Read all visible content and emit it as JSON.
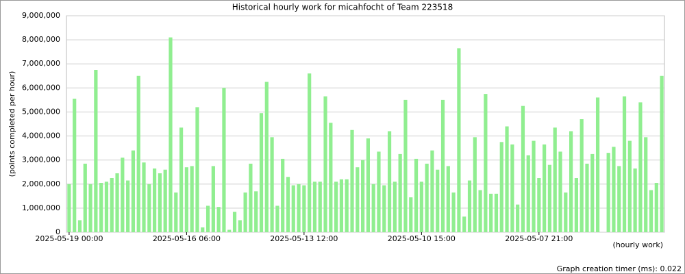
{
  "chart_data": {
    "type": "bar",
    "title": "Historical hourly work for micahfocht of Team 223518",
    "y_label": "(points completed per hour)",
    "x_label": "(hourly work)",
    "footer": "Graph creation timer (ms): 0.022",
    "color": "#90ee90",
    "grid": true,
    "categories": [
      "2025-05-19 00:00",
      null,
      null,
      null,
      null,
      null,
      null,
      null,
      null,
      null,
      null,
      null,
      null,
      null,
      null,
      null,
      null,
      null,
      null,
      null,
      null,
      null,
      "2025-05-16 06:00",
      null,
      null,
      null,
      null,
      null,
      null,
      null,
      null,
      null,
      null,
      null,
      null,
      null,
      null,
      null,
      null,
      null,
      null,
      null,
      null,
      null,
      "2025-05-13 12:00",
      null,
      null,
      null,
      null,
      null,
      null,
      null,
      null,
      null,
      null,
      null,
      null,
      null,
      null,
      null,
      null,
      null,
      null,
      null,
      null,
      null,
      "2025-05-10 15:00",
      null,
      null,
      null,
      null,
      null,
      null,
      null,
      null,
      null,
      null,
      null,
      null,
      null,
      null,
      null,
      null,
      null,
      null,
      null,
      null,
      null,
      "2025-05-07 21:00",
      null,
      null,
      null,
      null,
      null,
      null,
      null,
      null,
      null,
      null,
      null,
      null,
      null,
      null,
      null,
      null,
      null,
      null,
      null,
      null,
      null,
      null,
      null
    ],
    "values": [
      2000000,
      5550000,
      500000,
      2850000,
      2000000,
      6750000,
      2050000,
      2100000,
      2250000,
      2450000,
      3100000,
      2150000,
      3400000,
      6500000,
      2900000,
      2000000,
      2650000,
      2450000,
      2600000,
      8100000,
      1650000,
      4350000,
      2700000,
      2750000,
      5200000,
      200000,
      1100000,
      2750000,
      1050000,
      6000000,
      100000,
      850000,
      500000,
      1650000,
      2850000,
      1700000,
      4950000,
      6250000,
      3950000,
      1100000,
      3050000,
      2300000,
      1950000,
      2000000,
      1950000,
      6600000,
      2100000,
      2100000,
      5650000,
      4550000,
      2100000,
      2200000,
      2200000,
      4250000,
      2700000,
      3000000,
      3900000,
      2000000,
      3350000,
      1950000,
      4200000,
      2100000,
      3250000,
      5500000,
      1450000,
      3050000,
      2100000,
      2850000,
      3400000,
      2600000,
      5500000,
      2750000,
      1650000,
      7650000,
      650000,
      2150000,
      3950000,
      1750000,
      5750000,
      1600000,
      1600000,
      3750000,
      4400000,
      3650000,
      1150000,
      5250000,
      3200000,
      3800000,
      2250000,
      3650000,
      2800000,
      4350000,
      3350000,
      1650000,
      4200000,
      2250000,
      4700000,
      2850000,
      3250000,
      5600000,
      0,
      3300000,
      3550000,
      2750000,
      5650000,
      3800000,
      2650000,
      5400000,
      3950000,
      1750000,
      2050000,
      6500000
    ],
    "ylim": [
      0,
      9000000
    ],
    "yticks": [
      0,
      {
        "value": 1000000,
        "label": "1,000,000"
      },
      {
        "value": 2000000,
        "label": "2,000,000"
      },
      {
        "value": 3000000,
        "label": "3,000,000"
      },
      {
        "value": 4000000,
        "label": "4,000,000"
      },
      {
        "value": 5000000,
        "label": "5,000,000"
      },
      {
        "value": 6000000,
        "label": "6,000,000"
      },
      {
        "value": 7000000,
        "label": "7,000,000"
      },
      {
        "value": 8000000,
        "label": "8,000,000"
      },
      {
        "value": 9000000,
        "label": "9,000,000"
      }
    ]
  }
}
